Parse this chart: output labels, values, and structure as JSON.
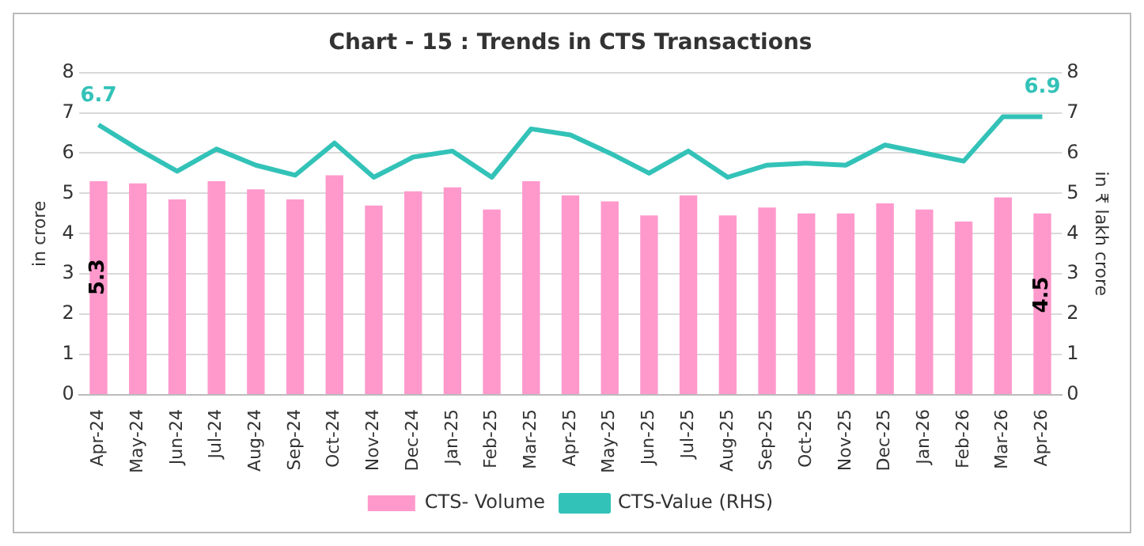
{
  "chart_data": {
    "type": "bar",
    "title": "Chart - 15 : Trends in CTS Transactions",
    "ylabel": "in crore",
    "y2label": "in ₹ lakh crore",
    "categories": [
      "Apr-24",
      "May-24",
      "Jun-24",
      "Jul-24",
      "Aug-24",
      "Sep-24",
      "Oct-24",
      "Nov-24",
      "Dec-24",
      "Jan-25",
      "Feb-25",
      "Mar-25",
      "Apr-25",
      "May-25",
      "Jun-25",
      "Jul-25",
      "Aug-25",
      "Sep-25",
      "Oct-25",
      "Nov-25",
      "Dec-25",
      "Jan-26",
      "Feb-26",
      "Mar-26",
      "Apr-26"
    ],
    "series": [
      {
        "name": "CTS- Volume",
        "color": "#ff99cc",
        "values": [
          5.3,
          5.25,
          4.85,
          5.3,
          5.1,
          4.85,
          5.45,
          4.7,
          5.05,
          5.15,
          4.6,
          5.3,
          4.95,
          4.8,
          4.45,
          4.95,
          4.45,
          4.65,
          4.5,
          4.5,
          4.75,
          4.6,
          4.3,
          4.9,
          4.5
        ],
        "value_labels": [
          "5.3",
          null,
          null,
          null,
          null,
          null,
          null,
          null,
          null,
          null,
          null,
          null,
          null,
          null,
          null,
          null,
          null,
          null,
          null,
          null,
          null,
          null,
          null,
          null,
          "4.5"
        ]
      },
      {
        "name": "CTS-Value (RHS)",
        "type": "line",
        "axis": "y2",
        "color": "#33c2b8",
        "values": [
          6.7,
          6.1,
          5.55,
          6.1,
          5.7,
          5.45,
          6.25,
          5.4,
          5.9,
          6.05,
          5.4,
          6.6,
          6.45,
          6.0,
          5.5,
          6.05,
          5.4,
          5.7,
          5.75,
          5.7,
          6.2,
          6.0,
          5.8,
          6.9,
          6.9
        ],
        "value_labels": [
          "6.7",
          null,
          null,
          null,
          null,
          null,
          null,
          null,
          null,
          null,
          null,
          null,
          null,
          null,
          null,
          null,
          null,
          null,
          null,
          null,
          null,
          null,
          null,
          null,
          "6.9"
        ]
      }
    ],
    "ylim": [
      0,
      8
    ],
    "yticks": [
      0,
      1,
      2,
      3,
      4,
      5,
      6,
      7,
      8
    ],
    "y2lim": [
      0,
      8
    ],
    "y2ticks": [
      0,
      1,
      2,
      3,
      4,
      5,
      6,
      7,
      8
    ],
    "grid": "y",
    "legend": "bottom",
    "marker": "none"
  }
}
